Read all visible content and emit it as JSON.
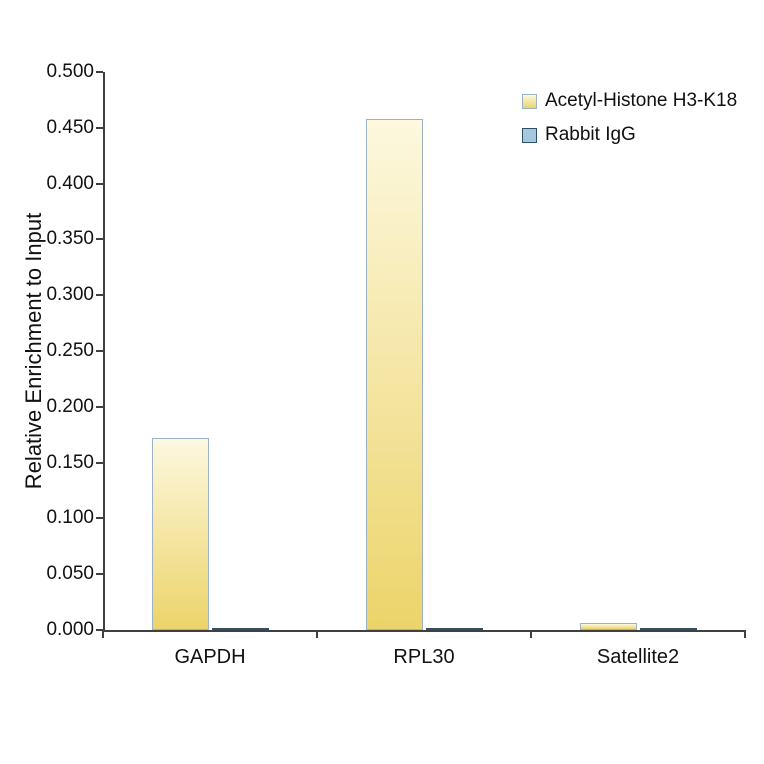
{
  "page": {
    "background": "#ffffff"
  },
  "chart_data": {
    "type": "bar",
    "title": "",
    "ylabel": "Relative Enrichment to Input",
    "xlabel": "",
    "ylim": [
      0,
      0.5
    ],
    "ytick_step": 0.05,
    "ytick_decimals": 3,
    "grid": false,
    "legend_position": "top-right",
    "categories": [
      "GAPDH",
      "RPL30",
      "Satellite2"
    ],
    "series": [
      {
        "name": "Acetyl-Histone H3-K18",
        "values": [
          0.172,
          0.458,
          0.006
        ],
        "fill_top": "#FDF8DF",
        "fill_bottom": "#ECD46A",
        "border": "#9BB3C6"
      },
      {
        "name": "Rabbit IgG",
        "values": [
          0.002,
          0.002,
          0.002
        ],
        "fill_top": "#A6C7DE",
        "fill_bottom": "#A6C7DE",
        "border": "#2F5168"
      }
    ],
    "ytick_labels": [
      "0.000",
      "0.050",
      "0.100",
      "0.150",
      "0.200",
      "0.250",
      "0.300",
      "0.350",
      "0.400",
      "0.450",
      "0.500"
    ]
  }
}
